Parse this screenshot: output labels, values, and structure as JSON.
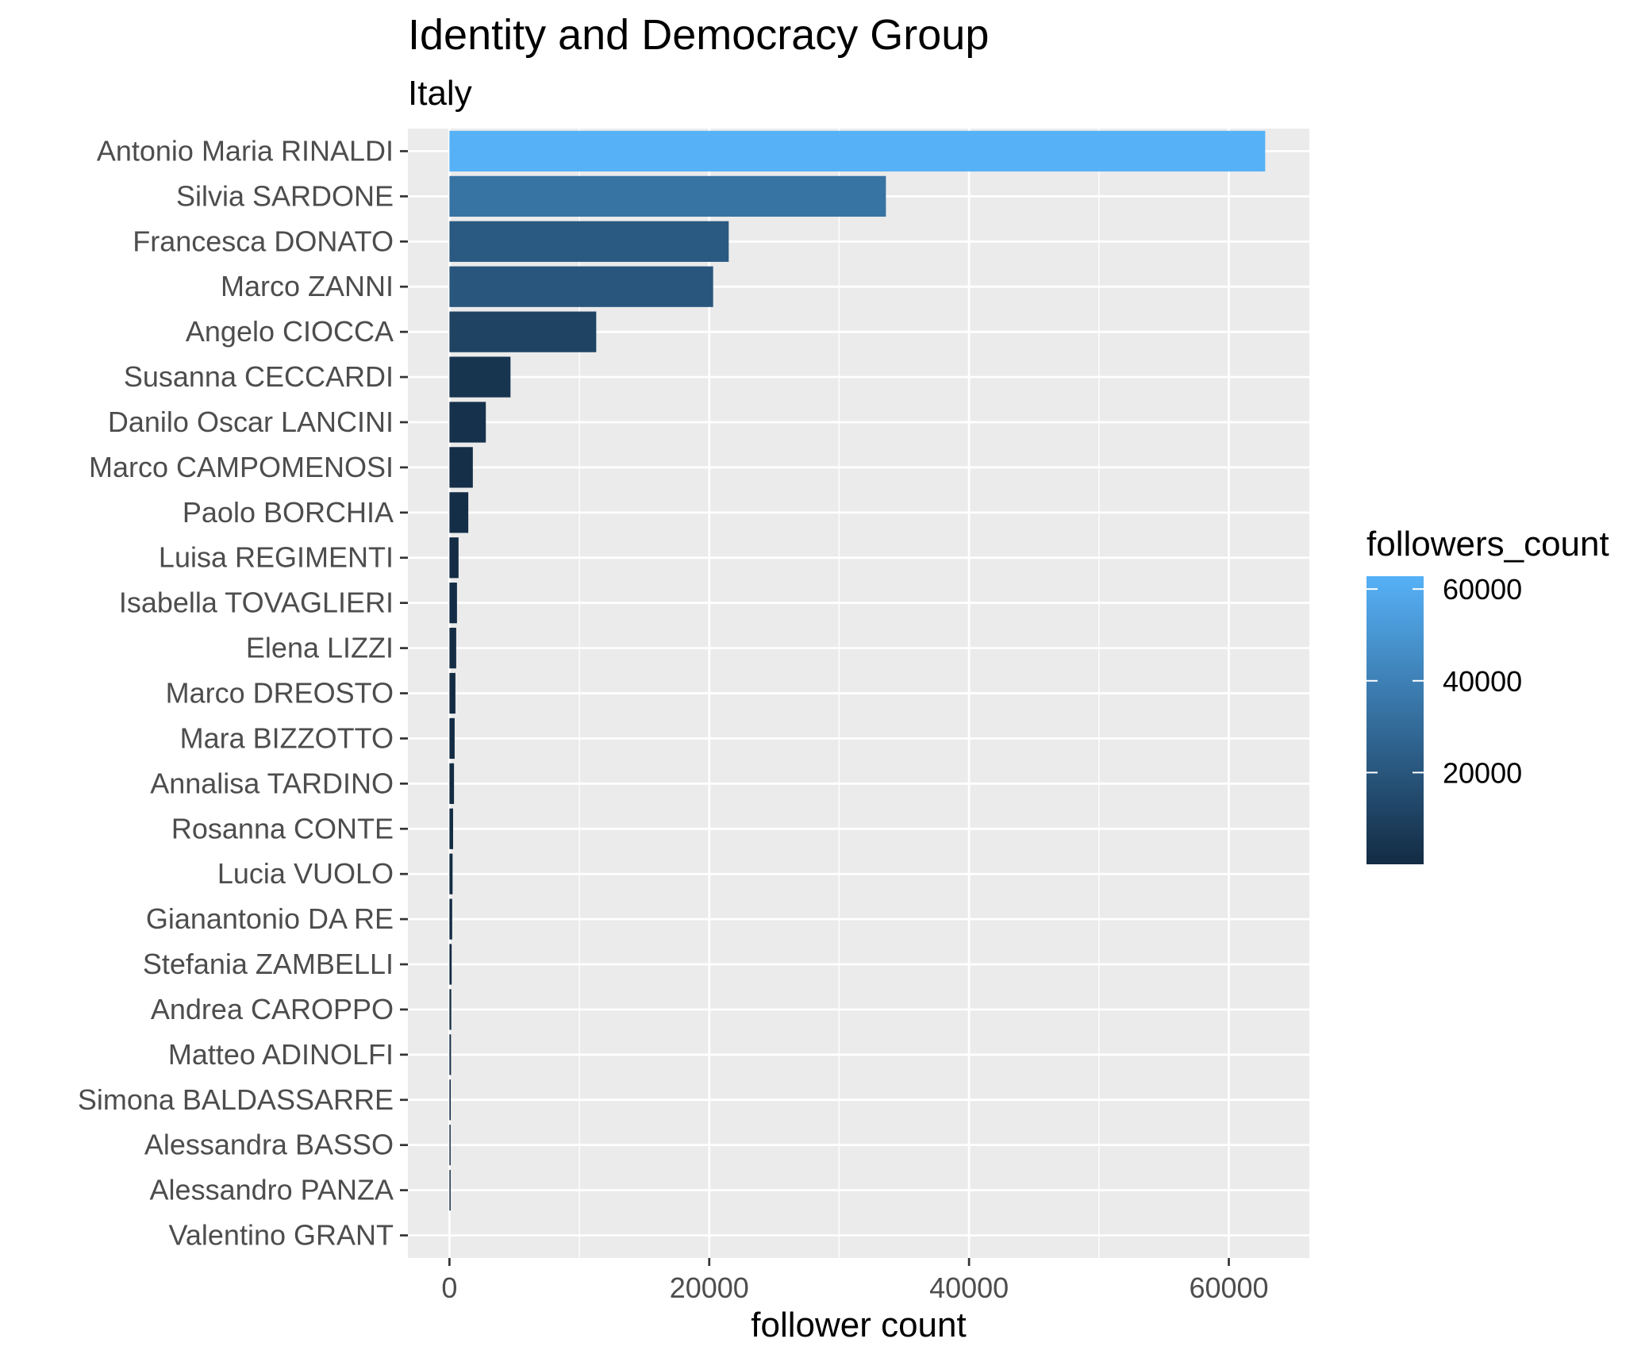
{
  "chart_data": {
    "type": "bar",
    "orientation": "horizontal",
    "title": "Identity and Democracy Group",
    "subtitle": "Italy",
    "xlabel": "follower count",
    "ylabel": "",
    "xlim": [
      -3200,
      66200
    ],
    "x_ticks": [
      0,
      20000,
      40000,
      60000
    ],
    "x_tick_labels": [
      "0",
      "20000",
      "40000",
      "60000"
    ],
    "grid": true,
    "categories": [
      "Antonio Maria RINALDI",
      "Silvia SARDONE",
      "Francesca DONATO",
      "Marco ZANNI",
      "Angelo CIOCCA",
      "Susanna CECCARDI",
      "Danilo Oscar LANCINI",
      "Marco CAMPOMENOSI",
      "Paolo BORCHIA",
      "Luisa REGIMENTI",
      "Isabella TOVAGLIERI",
      "Elena LIZZI",
      "Marco DREOSTO",
      "Mara BIZZOTTO",
      "Annalisa TARDINO",
      "Rosanna CONTE",
      "Lucia VUOLO",
      "Gianantonio DA RE",
      "Stefania ZAMBELLI",
      "Andrea CAROPPO",
      "Matteo ADINOLFI",
      "Simona BALDASSARRE",
      "Alessandra BASSO",
      "Alessandro PANZA",
      "Valentino GRANT"
    ],
    "values": [
      62800,
      33600,
      21500,
      20300,
      11300,
      4700,
      2800,
      1800,
      1450,
      700,
      580,
      520,
      460,
      400,
      350,
      280,
      240,
      210,
      170,
      140,
      120,
      100,
      80,
      50,
      0
    ],
    "legend": {
      "title": "followers_count",
      "placement": "right",
      "ticks": [
        20000,
        40000,
        60000
      ],
      "tick_labels": [
        "20000",
        "40000",
        "60000"
      ],
      "range": [
        0,
        62800
      ],
      "color_low": "#132b43",
      "color_high": "#56b1f7"
    },
    "panel_background": "#ebebeb",
    "gridline_color": "#ffffff"
  }
}
